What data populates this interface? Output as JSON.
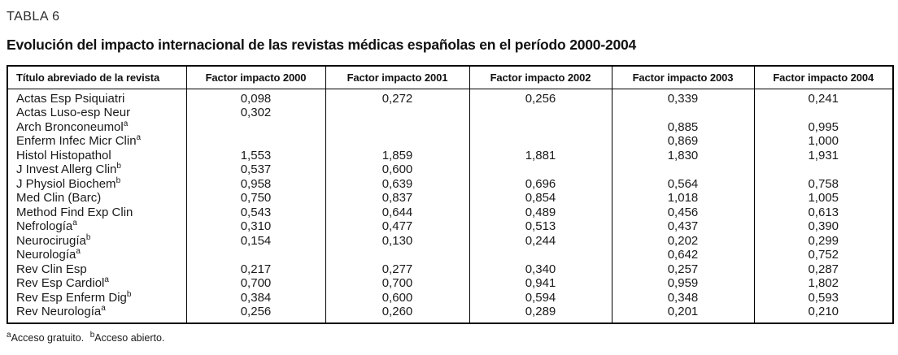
{
  "page": {
    "label": "TABLA 6",
    "title": "Evolución del impacto internacional de las revistas médicas españolas en el período 2000-2004"
  },
  "table": {
    "columns": [
      "Título abreviado de la revista",
      "Factor impacto 2000",
      "Factor impacto 2001",
      "Factor impacto 2002",
      "Factor impacto 2003",
      "Factor impacto 2004"
    ],
    "rows": [
      {
        "name": "Actas Esp Psiquiatri",
        "sup": "",
        "values": [
          "0,098",
          "0,272",
          "0,256",
          "0,339",
          "0,241"
        ]
      },
      {
        "name": "Actas Luso-esp Neur",
        "sup": "",
        "values": [
          "0,302",
          "",
          "",
          "",
          ""
        ]
      },
      {
        "name": "Arch Bronconeumol",
        "sup": "a",
        "values": [
          "",
          "",
          "",
          "0,885",
          "0,995"
        ]
      },
      {
        "name": "Enferm Infec Micr Clin",
        "sup": "a",
        "values": [
          "",
          "",
          "",
          "0,869",
          "1,000"
        ]
      },
      {
        "name": "Histol Histopathol",
        "sup": "",
        "values": [
          "1,553",
          "1,859",
          "1,881",
          "1,830",
          "1,931"
        ]
      },
      {
        "name": "J Invest Allerg Clin",
        "sup": "b",
        "values": [
          "0,537",
          "0,600",
          "",
          "",
          ""
        ]
      },
      {
        "name": "J Physiol Biochem",
        "sup": "b",
        "values": [
          "0,958",
          "0,639",
          "0,696",
          "0,564",
          "0,758"
        ]
      },
      {
        "name": "Med Clin (Barc)",
        "sup": "",
        "values": [
          "0,750",
          "0,837",
          "0,854",
          "1,018",
          "1,005"
        ]
      },
      {
        "name": "Method Find Exp Clin",
        "sup": "",
        "values": [
          "0,543",
          "0,644",
          "0,489",
          "0,456",
          "0,613"
        ]
      },
      {
        "name": "Nefrología",
        "sup": "a",
        "values": [
          "0,310",
          "0,477",
          "0,513",
          "0,437",
          "0,390"
        ]
      },
      {
        "name": "Neurocirugía",
        "sup": "b",
        "values": [
          "0,154",
          "0,130",
          "0,244",
          "0,202",
          "0,299"
        ]
      },
      {
        "name": "Neurología",
        "sup": "a",
        "values": [
          "",
          "",
          "",
          "0,642",
          "0,752"
        ]
      },
      {
        "name": "Rev Clin Esp",
        "sup": "",
        "values": [
          "0,217",
          "0,277",
          "0,340",
          "0,257",
          "0,287"
        ]
      },
      {
        "name": "Rev Esp Cardiol",
        "sup": "a",
        "values": [
          "0,700",
          "0,700",
          "0,941",
          "0,959",
          "1,802"
        ]
      },
      {
        "name": "Rev Esp Enferm Dig",
        "sup": "b",
        "values": [
          "0,384",
          "0,600",
          "0,594",
          "0,348",
          "0,593"
        ]
      },
      {
        "name": "Rev Neurología",
        "sup": "a",
        "values": [
          "0,256",
          "0,260",
          "0,289",
          "0,201",
          "0,210"
        ]
      }
    ]
  },
  "footnotes": [
    {
      "sup": "a",
      "text": "Acceso gratuito."
    },
    {
      "sup": "b",
      "text": "Acceso abierto."
    }
  ]
}
